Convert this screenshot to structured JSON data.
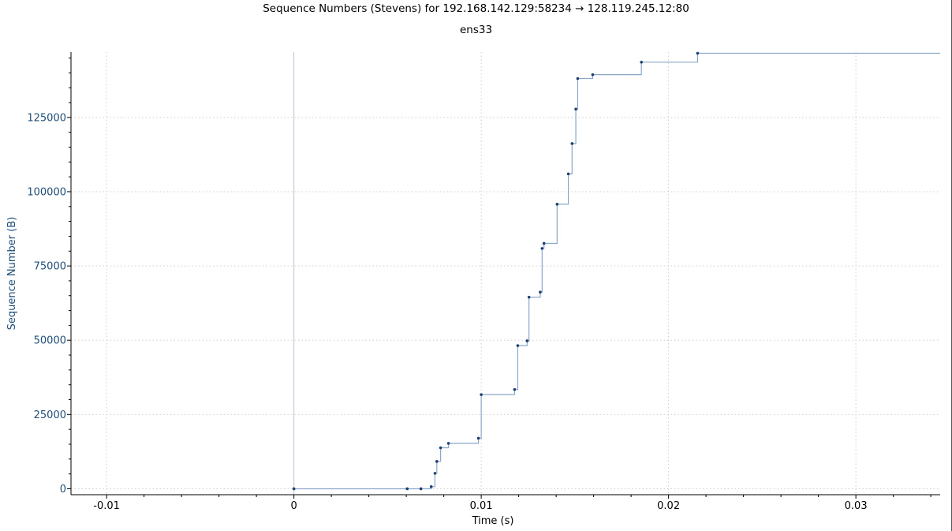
{
  "title": "Sequence Numbers (Stevens) for 192.168.142.129:58234 → 128.119.245.12:80",
  "subtitle": "ens33",
  "chart_data": {
    "type": "line",
    "title": "Sequence Numbers (Stevens) for 192.168.142.129:58234 → 128.119.245.12:80",
    "subtitle": "ens33",
    "xlabel": "Time (s)",
    "ylabel": "Sequence Number (B)",
    "xlim": [
      -0.0119,
      0.0345
    ],
    "ylim": [
      -2000,
      147000
    ],
    "x_ticks": [
      -0.01,
      0,
      0.01,
      0.02,
      0.03
    ],
    "x_tick_labels": [
      "-0.01",
      "0",
      "0.01",
      "0.02",
      "0.03"
    ],
    "y_ticks": [
      0,
      25000,
      50000,
      75000,
      100000,
      125000
    ],
    "y_tick_labels": [
      "0",
      "25000",
      "50000",
      "75000",
      "100000",
      "125000"
    ],
    "grid": true,
    "line_style": "step",
    "series": [
      {
        "x": [
          0,
          0.00605,
          0.00678,
          0.00733,
          0.00753,
          0.00763,
          0.00783,
          0.00825,
          0.00985,
          0.01,
          0.01178,
          0.01195,
          0.01245,
          0.01255,
          0.01315,
          0.01325,
          0.01335,
          0.01405,
          0.01465,
          0.01485,
          0.01505,
          0.01515,
          0.01595,
          0.01855,
          0.02155
        ],
        "y": [
          0,
          0,
          0,
          700,
          5200,
          9200,
          13800,
          15300,
          17000,
          31700,
          33400,
          48200,
          49800,
          64500,
          66200,
          80900,
          82600,
          95800,
          106000,
          116200,
          127800,
          138100,
          139400,
          143600,
          146600
        ]
      }
    ],
    "line_extends_to_x": 0.0345,
    "colors": {
      "line": "#8aa8c8",
      "marker": "#1f3f70",
      "axis_text": "#1f4e79",
      "grid": "#cfcfcf",
      "zero_line": "#b8c4d0"
    }
  }
}
